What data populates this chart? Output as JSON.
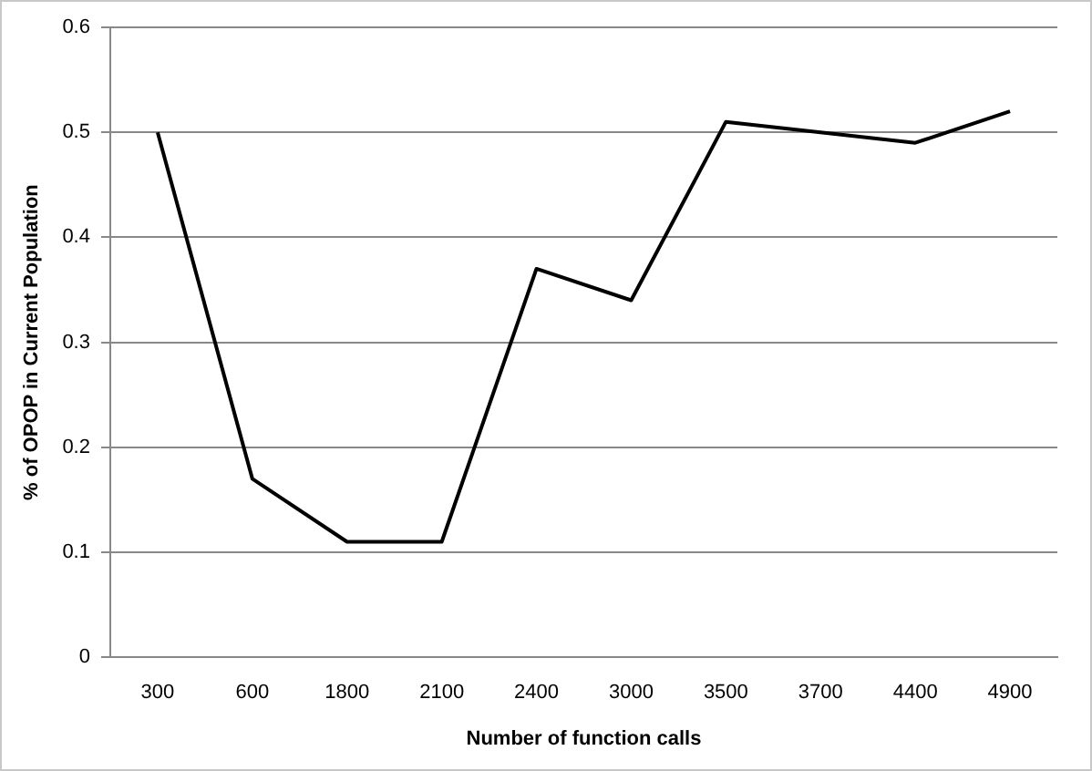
{
  "chart_data": {
    "type": "line",
    "xlabel": "Number of function calls",
    "ylabel": "% of OPOP in Current Population",
    "categories": [
      "300",
      "600",
      "1800",
      "2100",
      "2400",
      "3000",
      "3500",
      "3700",
      "4400",
      "4900"
    ],
    "series": [
      {
        "color": "#000000",
        "values": [
          0.5,
          0.17,
          0.11,
          0.11,
          0.37,
          0.34,
          0.51,
          0.5,
          0.49,
          0.52
        ]
      }
    ],
    "ylim": [
      0,
      0.6
    ],
    "yticks": [
      0,
      0.1,
      0.2,
      0.3,
      0.4,
      0.5,
      0.6
    ],
    "grid": "y",
    "legend": false,
    "marker": "none",
    "line_style": "solid"
  }
}
